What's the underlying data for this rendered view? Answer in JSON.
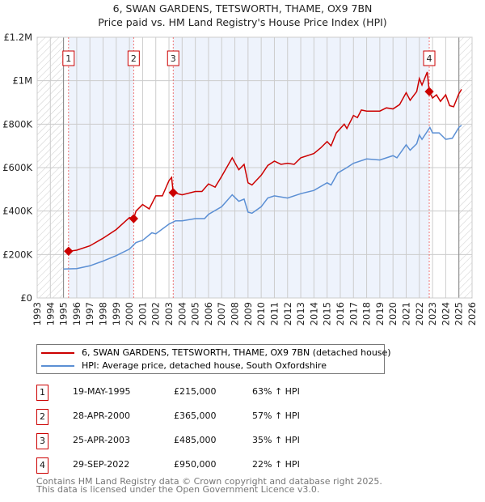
{
  "title": "6, SWAN GARDENS, TETSWORTH, THAME, OX9 7BN",
  "subtitle": "Price paid vs. HM Land Registry's House Price Index (HPI)",
  "chart_data": {
    "type": "line",
    "title": "6, SWAN GARDENS, TETSWORTH, THAME, OX9 7BN",
    "ylabel": "",
    "xlabel": "",
    "xlim": [
      1993,
      2026
    ],
    "ylim": [
      0,
      1200000
    ],
    "y_ticks": [
      {
        "v": 0,
        "label": "£0"
      },
      {
        "v": 200000,
        "label": "£200K"
      },
      {
        "v": 400000,
        "label": "£400K"
      },
      {
        "v": 600000,
        "label": "£600K"
      },
      {
        "v": 800000,
        "label": "£800K"
      },
      {
        "v": 1000000,
        "label": "£1M"
      },
      {
        "v": 1200000,
        "label": "£1.2M"
      }
    ],
    "x_ticks": [
      "1993",
      "1994",
      "1995",
      "1996",
      "1997",
      "1998",
      "1999",
      "2000",
      "2001",
      "2002",
      "2003",
      "2004",
      "2005",
      "2006",
      "2007",
      "2008",
      "2009",
      "2010",
      "2011",
      "2012",
      "2013",
      "2014",
      "2015",
      "2016",
      "2017",
      "2018",
      "2019",
      "2020",
      "2021",
      "2022",
      "2023",
      "2024",
      "2025",
      "2026"
    ],
    "grid": true,
    "data_range": [
      1995,
      2025
    ],
    "series": [
      {
        "name": "6, SWAN GARDENS, TETSWORTH, THAME, OX9 7BN (detached house)",
        "color": "#cc0000",
        "x": [
          1995.4,
          1996,
          1997,
          1998,
          1999,
          2000,
          2000.32,
          2000.5,
          2001,
          2001.5,
          2002,
          2002.5,
          2003,
          2003.2,
          2003.32,
          2004,
          2005,
          2005.5,
          2006,
          2006.5,
          2007,
          2007.8,
          2008.3,
          2008.7,
          2009,
          2009.3,
          2010,
          2010.5,
          2011,
          2011.5,
          2012,
          2012.5,
          2013,
          2014,
          2014.5,
          2015,
          2015.3,
          2015.7,
          2016.3,
          2016.5,
          2017,
          2017.3,
          2017.6,
          2018,
          2019,
          2019.5,
          2020,
          2020.5,
          2021,
          2021.3,
          2021.8,
          2022,
          2022.2,
          2022.6,
          2022.75,
          2023,
          2023.3,
          2023.6,
          2024,
          2024.3,
          2024.6,
          2025,
          2025.2
        ],
        "y": [
          215000,
          220000,
          240000,
          275000,
          315000,
          370000,
          365000,
          400000,
          430000,
          410000,
          470000,
          470000,
          540000,
          555000,
          485000,
          475000,
          490000,
          490000,
          525000,
          510000,
          560000,
          645000,
          590000,
          615000,
          530000,
          520000,
          565000,
          610000,
          630000,
          615000,
          620000,
          615000,
          645000,
          665000,
          690000,
          720000,
          700000,
          760000,
          800000,
          780000,
          840000,
          830000,
          865000,
          860000,
          860000,
          875000,
          870000,
          890000,
          945000,
          910000,
          950000,
          1010000,
          980000,
          1040000,
          950000,
          920000,
          935000,
          905000,
          935000,
          885000,
          880000,
          940000,
          960000
        ]
      },
      {
        "name": "HPI: Average price, detached house, South Oxfordshire",
        "color": "#5b8fd4",
        "x": [
          1995,
          1996,
          1997,
          1998,
          1999,
          2000,
          2000.5,
          2001,
          2001.7,
          2002,
          2003,
          2003.5,
          2004,
          2005,
          2005.7,
          2006,
          2007,
          2007.8,
          2008.3,
          2008.7,
          2009,
          2009.3,
          2010,
          2010.5,
          2011,
          2012,
          2013,
          2014,
          2015,
          2015.3,
          2015.8,
          2016.5,
          2017,
          2018,
          2019,
          2020,
          2020.3,
          2021,
          2021.3,
          2021.8,
          2022,
          2022.2,
          2022.8,
          2023,
          2023.5,
          2024,
          2024.5,
          2025,
          2025.2
        ],
        "y": [
          133000,
          135000,
          148000,
          170000,
          195000,
          225000,
          255000,
          265000,
          300000,
          295000,
          340000,
          355000,
          355000,
          365000,
          365000,
          385000,
          420000,
          475000,
          445000,
          455000,
          395000,
          390000,
          420000,
          460000,
          470000,
          460000,
          480000,
          495000,
          530000,
          520000,
          575000,
          600000,
          620000,
          640000,
          635000,
          655000,
          645000,
          705000,
          680000,
          710000,
          750000,
          730000,
          785000,
          760000,
          760000,
          730000,
          735000,
          785000,
          795000
        ]
      }
    ],
    "sales": [
      {
        "n": "1",
        "x": 2000.32,
        "x0": 1995.38,
        "date": "19-MAY-1995",
        "price": "£215,000",
        "value": 215000,
        "hpi": "63% ↑ HPI"
      },
      {
        "n": "2",
        "x": 2000.32,
        "date": "28-APR-2000",
        "price": "£365,000",
        "value": 365000,
        "hpi": "57% ↑ HPI"
      },
      {
        "n": "3",
        "x": 2003.32,
        "date": "25-APR-2003",
        "price": "£485,000",
        "value": 485000,
        "hpi": "35% ↑ HPI"
      },
      {
        "n": "4",
        "x": 2022.75,
        "date": "29-SEP-2022",
        "price": "£950,000",
        "value": 950000,
        "hpi": "22% ↑ HPI"
      }
    ]
  },
  "legend": {
    "items": [
      "6, SWAN GARDENS, TETSWORTH, THAME, OX9 7BN (detached house)",
      "HPI: Average price, detached house, South Oxfordshire"
    ]
  },
  "footer": {
    "line1": "Contains HM Land Registry data © Crown copyright and database right 2025.",
    "line2": "This data is licensed under the Open Government Licence v3.0."
  }
}
